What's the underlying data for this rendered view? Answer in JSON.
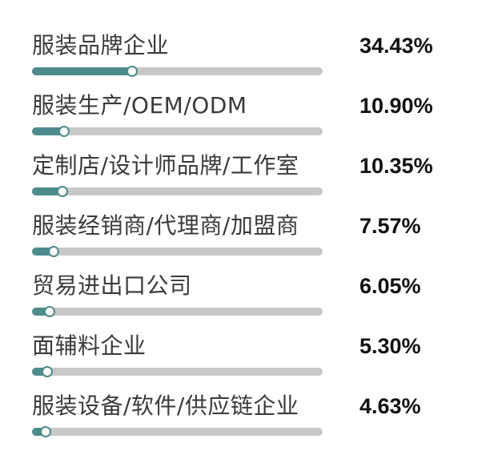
{
  "colors": {
    "accent": "#4e8b8c",
    "track": "#c8c8c8",
    "label_text": "#3a3a3a",
    "value_text": "#111111"
  },
  "chart_data": {
    "type": "bar",
    "orientation": "horizontal",
    "title": "",
    "xlabel": "",
    "ylabel": "",
    "xlim": [
      0,
      100
    ],
    "grid": false,
    "legend": "none",
    "categories": [
      "服装品牌企业",
      "服装生产/OEM/ODM",
      "定制店/设计师品牌/工作室",
      "服装经销商/代理商/加盟商",
      "贸易进出口公司",
      "面辅料企业",
      "服装设备/软件/供应链企业"
    ],
    "values": [
      34.43,
      10.9,
      10.35,
      7.57,
      6.05,
      5.3,
      4.63
    ],
    "value_labels": [
      "34.43%",
      "10.90%",
      "10.35%",
      "7.57%",
      "6.05%",
      "5.30%",
      "4.63%"
    ]
  }
}
